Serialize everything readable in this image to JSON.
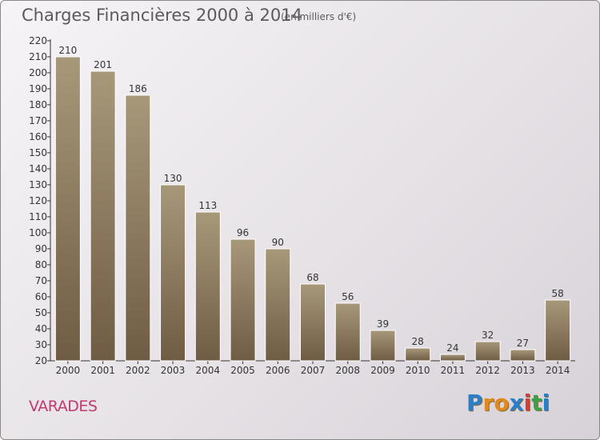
{
  "header": {
    "title": "Charges Financières 2000 à 2014",
    "unit": "(en milliers d'€)"
  },
  "footer": {
    "commune": "VARADES",
    "logo_text": "Proxiti",
    "logo_colors": [
      "#2a7fc9",
      "#e08a1e",
      "#e08a1e",
      "#2a7fc9",
      "#d93a3a",
      "#3aa04a",
      "#2a7fc9"
    ]
  },
  "colors": {
    "bar_light": "#a8987a",
    "bar_dark": "#6e5c44",
    "axis": "#333333",
    "grid": "#ffffff"
  },
  "chart_data": {
    "type": "bar",
    "categories": [
      "2000",
      "2001",
      "2002",
      "2003",
      "2004",
      "2005",
      "2006",
      "2007",
      "2008",
      "2009",
      "2010",
      "2011",
      "2012",
      "2013",
      "2014"
    ],
    "values": [
      210,
      201,
      186,
      130,
      113,
      96,
      90,
      68,
      56,
      39,
      28,
      24,
      32,
      27,
      58
    ],
    "ylim": [
      20,
      220
    ],
    "yticks": [
      20,
      30,
      40,
      50,
      60,
      70,
      80,
      90,
      100,
      110,
      120,
      130,
      140,
      150,
      160,
      170,
      180,
      190,
      200,
      210,
      220
    ],
    "data_labels": true,
    "grid": false
  }
}
